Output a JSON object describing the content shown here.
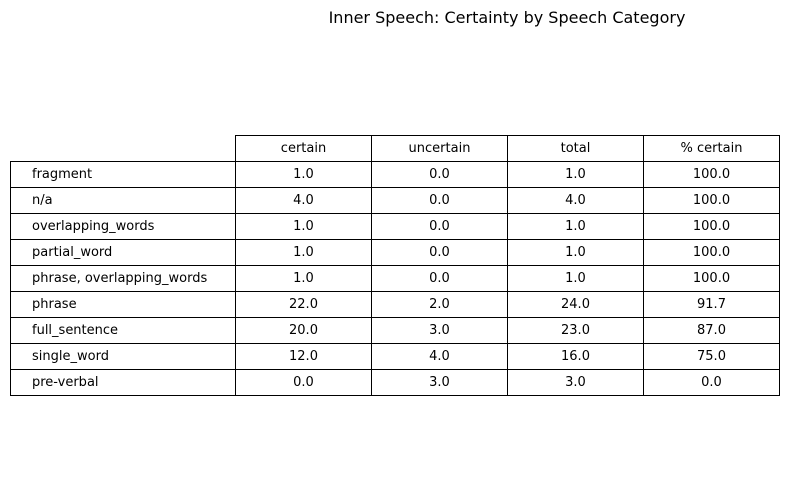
{
  "chart_data": {
    "type": "table",
    "title": "Inner Speech: Certainty by Speech Category",
    "columns": [
      "certain",
      "uncertain",
      "total",
      "% certain"
    ],
    "rows": [
      {
        "label": "fragment",
        "values": [
          "1.0",
          "0.0",
          "1.0",
          "100.0"
        ]
      },
      {
        "label": "n/a",
        "values": [
          "4.0",
          "0.0",
          "4.0",
          "100.0"
        ]
      },
      {
        "label": "overlapping_words",
        "values": [
          "1.0",
          "0.0",
          "1.0",
          "100.0"
        ]
      },
      {
        "label": "partial_word",
        "values": [
          "1.0",
          "0.0",
          "1.0",
          "100.0"
        ]
      },
      {
        "label": "phrase, overlapping_words",
        "values": [
          "1.0",
          "0.0",
          "1.0",
          "100.0"
        ]
      },
      {
        "label": "phrase",
        "values": [
          "22.0",
          "2.0",
          "24.0",
          "91.7"
        ]
      },
      {
        "label": "full_sentence",
        "values": [
          "20.0",
          "3.0",
          "23.0",
          "87.0"
        ]
      },
      {
        "label": "single_word",
        "values": [
          "12.0",
          "4.0",
          "16.0",
          "75.0"
        ]
      },
      {
        "label": "pre-verbal",
        "values": [
          "0.0",
          "3.0",
          "3.0",
          "0.0"
        ]
      }
    ]
  }
}
